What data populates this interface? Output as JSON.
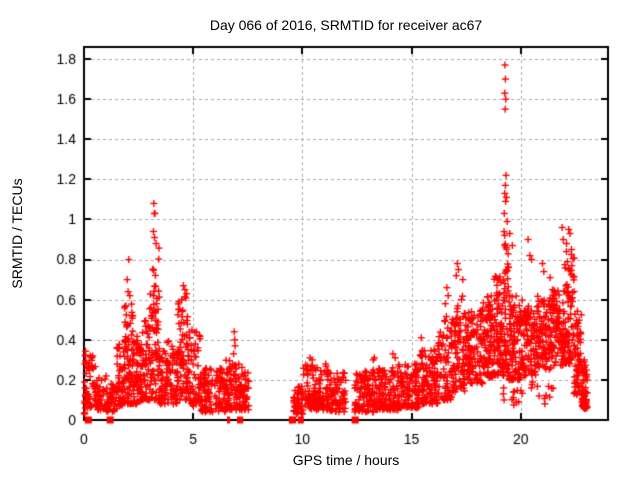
{
  "chart_data": {
    "type": "scatter",
    "title": "Day 066 of 2016, SRMTID for receiver ac67",
    "xlabel": "GPS time / hours",
    "ylabel": "SRMTID / TECUs",
    "xlim": [
      0,
      24
    ],
    "ylim": [
      0,
      1.86
    ],
    "xticks": {
      "values": [
        0,
        5,
        10,
        15,
        20
      ],
      "labels": [
        "0",
        "5",
        "10",
        "15",
        "20"
      ]
    },
    "yticks": {
      "values": [
        0,
        0.2,
        0.4,
        0.6,
        0.8,
        1.0,
        1.2,
        1.4,
        1.6,
        1.8
      ],
      "labels": [
        "0",
        "0.2",
        "0.4",
        "0.6",
        "0.8",
        "1",
        "1.2",
        "1.4",
        "1.6",
        "1.8"
      ]
    },
    "grid": {
      "show": true,
      "color": "#aaaaaa",
      "dash": [
        3,
        3
      ]
    },
    "axis_color": "#000000",
    "background": "#ffffff",
    "series": [
      {
        "name": "SRMTID",
        "marker": "plus",
        "color": "#ff0000",
        "size": 7
      }
    ],
    "zero_flags": {
      "marker": "filled-square",
      "color": "#ff0000",
      "size": 7,
      "points": [
        [
          0.2,
          7
        ],
        [
          1.2,
          7
        ],
        [
          6.62,
          3
        ],
        [
          7.08,
          3
        ],
        [
          7.22,
          3
        ],
        [
          9.45,
          3
        ],
        [
          9.58,
          6
        ],
        [
          9.93,
          6
        ],
        [
          12.42,
          7
        ]
      ]
    },
    "data_gaps_hours": [
      [
        7.55,
        9.6
      ],
      [
        12.0,
        2.4
      ]
    ],
    "point_generation": {
      "note": "dense scatter approximated by clusters: [x_start,x_end,count,y_min,y_max,power]; y = y_min + (y_max-y_min)*u^power",
      "seed": 66,
      "clusters": [
        [
          0.02,
          0.1,
          14,
          0.03,
          0.37,
          1.0
        ],
        [
          0.05,
          0.45,
          34,
          0.06,
          0.32,
          1.6
        ],
        [
          0.3,
          0.52,
          6,
          0.26,
          0.37,
          1.0
        ],
        [
          0.45,
          1.05,
          48,
          0.05,
          0.22,
          1.5
        ],
        [
          1.05,
          1.5,
          40,
          0.04,
          0.18,
          1.4
        ],
        [
          1.5,
          1.85,
          46,
          0.07,
          0.38,
          1.6
        ],
        [
          1.85,
          2.25,
          75,
          0.08,
          0.58,
          1.6
        ],
        [
          2.25,
          2.6,
          52,
          0.08,
          0.42,
          1.5
        ],
        [
          2.6,
          3.0,
          58,
          0.1,
          0.5,
          1.5
        ],
        [
          3.0,
          3.45,
          80,
          0.1,
          0.86,
          1.5
        ],
        [
          3.45,
          3.8,
          46,
          0.08,
          0.35,
          1.5
        ],
        [
          3.8,
          4.3,
          56,
          0.08,
          0.42,
          1.5
        ],
        [
          4.3,
          4.85,
          85,
          0.1,
          0.62,
          1.4
        ],
        [
          4.85,
          5.35,
          52,
          0.07,
          0.45,
          1.6
        ],
        [
          5.35,
          6.5,
          115,
          0.04,
          0.26,
          1.4
        ],
        [
          6.5,
          7.1,
          68,
          0.05,
          0.3,
          1.4
        ],
        [
          7.1,
          7.55,
          52,
          0.05,
          0.27,
          1.3
        ],
        [
          9.6,
          10.05,
          42,
          0.03,
          0.17,
          1.3
        ],
        [
          10.05,
          11.2,
          120,
          0.05,
          0.28,
          1.4
        ],
        [
          11.2,
          12.0,
          70,
          0.04,
          0.24,
          1.4
        ],
        [
          12.4,
          13.3,
          95,
          0.04,
          0.25,
          1.4
        ],
        [
          13.3,
          14.4,
          115,
          0.05,
          0.26,
          1.4
        ],
        [
          14.4,
          15.35,
          105,
          0.06,
          0.28,
          1.4
        ],
        [
          15.35,
          16.2,
          105,
          0.08,
          0.35,
          1.4
        ],
        [
          16.2,
          16.85,
          78,
          0.1,
          0.52,
          1.4
        ],
        [
          16.85,
          17.45,
          85,
          0.14,
          0.62,
          1.4
        ],
        [
          17.45,
          18.25,
          115,
          0.18,
          0.55,
          1.2
        ],
        [
          18.25,
          18.75,
          85,
          0.2,
          0.62,
          1.2
        ],
        [
          18.75,
          19.15,
          72,
          0.22,
          0.72,
          1.2
        ],
        [
          19.15,
          19.45,
          62,
          0.22,
          0.95,
          1.3
        ],
        [
          19.45,
          20.1,
          105,
          0.2,
          0.62,
          1.3
        ],
        [
          19.6,
          20.1,
          10,
          0.06,
          0.16,
          1.0
        ],
        [
          20.1,
          20.7,
          92,
          0.22,
          0.57,
          1.2
        ],
        [
          20.3,
          21.5,
          12,
          0.08,
          0.2,
          1.0
        ],
        [
          20.7,
          21.4,
          100,
          0.25,
          0.62,
          1.2
        ],
        [
          21.4,
          22.0,
          92,
          0.27,
          0.68,
          1.2
        ],
        [
          22.0,
          22.45,
          82,
          0.28,
          0.85,
          1.3
        ],
        [
          22.45,
          22.8,
          62,
          0.12,
          0.55,
          1.2
        ],
        [
          22.8,
          23.05,
          52,
          0.05,
          0.3,
          1.2
        ]
      ],
      "outliers": [
        [
          1.98,
          0.7
        ],
        [
          2.05,
          0.8
        ],
        [
          2.02,
          0.64
        ],
        [
          2.1,
          0.62
        ],
        [
          3.2,
          1.08
        ],
        [
          3.22,
          1.03
        ],
        [
          3.25,
          1.03
        ],
        [
          3.18,
          0.94
        ],
        [
          3.23,
          0.91
        ],
        [
          3.3,
          0.88
        ],
        [
          4.55,
          0.67
        ],
        [
          4.62,
          0.65
        ],
        [
          4.7,
          0.63
        ],
        [
          6.88,
          0.44
        ],
        [
          6.9,
          0.4
        ],
        [
          6.92,
          0.37
        ],
        [
          6.85,
          0.33
        ],
        [
          10.35,
          0.31
        ],
        [
          10.45,
          0.3
        ],
        [
          13.3,
          0.31
        ],
        [
          13.25,
          0.3
        ],
        [
          14.15,
          0.33
        ],
        [
          14.25,
          0.31
        ],
        [
          15.45,
          0.41
        ],
        [
          16.62,
          0.66
        ],
        [
          16.68,
          0.62
        ],
        [
          16.55,
          0.58
        ],
        [
          17.1,
          0.78
        ],
        [
          17.15,
          0.75
        ],
        [
          17.05,
          0.72
        ],
        [
          17.35,
          0.7
        ],
        [
          19.28,
          1.77
        ],
        [
          19.3,
          1.7
        ],
        [
          19.27,
          1.63
        ],
        [
          19.32,
          1.6
        ],
        [
          19.29,
          1.55
        ],
        [
          19.33,
          1.22
        ],
        [
          19.3,
          1.17
        ],
        [
          19.27,
          1.13
        ],
        [
          19.35,
          1.11
        ],
        [
          19.31,
          1.09
        ],
        [
          19.25,
          1.03
        ],
        [
          19.38,
          0.99
        ],
        [
          19.2,
          0.13
        ],
        [
          19.24,
          0.1
        ],
        [
          19.22,
          0.16
        ],
        [
          19.5,
          0.93
        ],
        [
          19.62,
          0.87
        ],
        [
          20.34,
          0.9
        ],
        [
          20.42,
          0.82
        ],
        [
          20.5,
          0.8
        ],
        [
          21.0,
          0.78
        ],
        [
          21.06,
          0.74
        ],
        [
          21.35,
          0.71
        ],
        [
          21.9,
          0.96
        ],
        [
          21.95,
          0.9
        ],
        [
          22.2,
          0.95
        ],
        [
          22.26,
          0.93
        ],
        [
          22.1,
          0.88
        ],
        [
          22.33,
          0.85
        ]
      ]
    }
  }
}
